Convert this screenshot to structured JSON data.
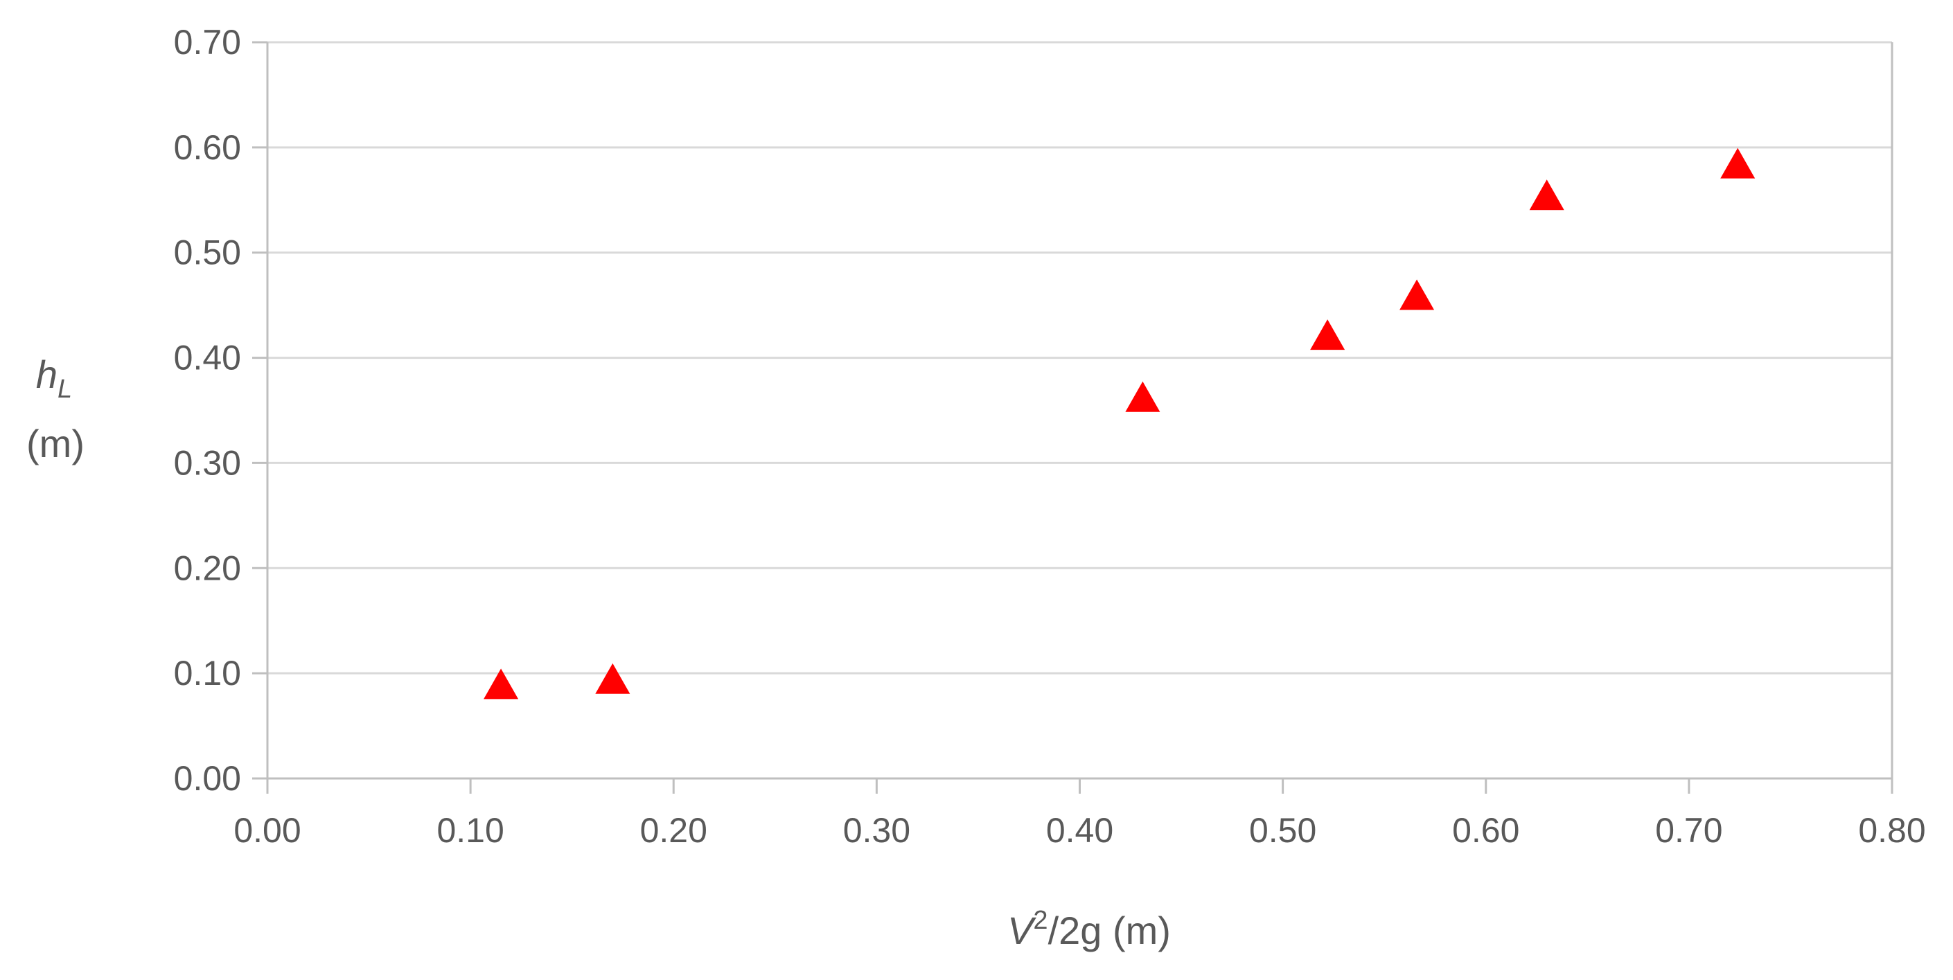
{
  "chart_data": {
    "type": "scatter",
    "title": "",
    "xlabel": {
      "variable": "V",
      "superscript": "2",
      "rest": "/2g (m)"
    },
    "ylabel": {
      "variable": "h",
      "subscript": "L",
      "unit": "(m)"
    },
    "xlim": [
      0,
      0.8
    ],
    "ylim": [
      0,
      0.7
    ],
    "x_ticks": [
      "0.00",
      "0.10",
      "0.20",
      "0.30",
      "0.40",
      "0.50",
      "0.60",
      "0.70",
      "0.80"
    ],
    "y_ticks": [
      "0.00",
      "0.10",
      "0.20",
      "0.30",
      "0.40",
      "0.50",
      "0.60",
      "0.70"
    ],
    "grid": "horizontal",
    "legend": "none",
    "series": [
      {
        "marker": "triangle",
        "color": "#ff0000",
        "points": [
          {
            "x": 0.115,
            "y": 0.09
          },
          {
            "x": 0.17,
            "y": 0.095
          },
          {
            "x": 0.431,
            "y": 0.363
          },
          {
            "x": 0.522,
            "y": 0.422
          },
          {
            "x": 0.566,
            "y": 0.46
          },
          {
            "x": 0.63,
            "y": 0.555
          },
          {
            "x": 0.724,
            "y": 0.585
          }
        ]
      }
    ],
    "colors": {
      "grid": "#d9d9d9",
      "axis": "#bfbfbf",
      "text": "#595959",
      "marker": "#ff0000"
    }
  }
}
